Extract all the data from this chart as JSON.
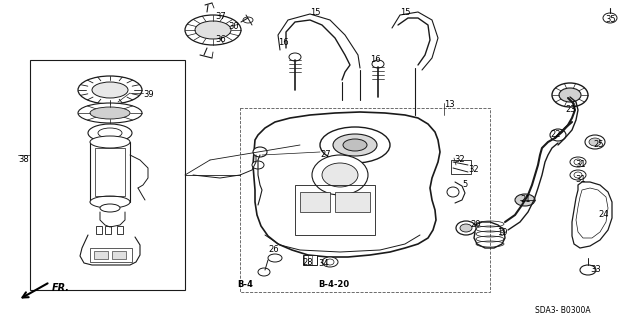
{
  "bg_color": "#ffffff",
  "line_color": "#1a1a1a",
  "fig_width": 6.4,
  "fig_height": 3.19,
  "dpi": 100,
  "sdacode": "SDA3- B0300A",
  "labels": [
    [
      "37",
      215,
      12,
      6,
      "normal"
    ],
    [
      "30",
      228,
      22,
      6,
      "normal"
    ],
    [
      "36",
      215,
      35,
      6,
      "normal"
    ],
    [
      "15",
      310,
      8,
      6,
      "normal"
    ],
    [
      "15",
      400,
      8,
      6,
      "normal"
    ],
    [
      "16",
      278,
      38,
      6,
      "normal"
    ],
    [
      "16",
      370,
      55,
      6,
      "normal"
    ],
    [
      "13",
      444,
      100,
      6,
      "normal"
    ],
    [
      "27",
      320,
      150,
      6,
      "normal"
    ],
    [
      "38",
      18,
      155,
      6,
      "normal"
    ],
    [
      "39",
      143,
      90,
      6,
      "normal"
    ],
    [
      "5",
      462,
      180,
      6,
      "normal"
    ],
    [
      "32",
      454,
      155,
      6,
      "normal"
    ],
    [
      "32",
      468,
      165,
      6,
      "normal"
    ],
    [
      "20",
      470,
      220,
      6,
      "normal"
    ],
    [
      "19",
      497,
      228,
      6,
      "normal"
    ],
    [
      "21",
      520,
      195,
      6,
      "normal"
    ],
    [
      "22",
      550,
      130,
      6,
      "normal"
    ],
    [
      "25",
      593,
      140,
      6,
      "normal"
    ],
    [
      "31",
      575,
      160,
      6,
      "normal"
    ],
    [
      "31",
      575,
      175,
      6,
      "normal"
    ],
    [
      "23",
      565,
      105,
      6,
      "normal"
    ],
    [
      "35",
      605,
      15,
      6,
      "normal"
    ],
    [
      "24",
      598,
      210,
      6,
      "normal"
    ],
    [
      "33",
      590,
      265,
      6,
      "normal"
    ],
    [
      "26",
      268,
      245,
      6,
      "normal"
    ],
    [
      "28",
      302,
      258,
      6,
      "normal"
    ],
    [
      "34",
      318,
      259,
      6,
      "normal"
    ],
    [
      "B-4",
      237,
      280,
      6,
      "bold"
    ],
    [
      "B-4-20",
      318,
      280,
      6,
      "bold"
    ]
  ]
}
